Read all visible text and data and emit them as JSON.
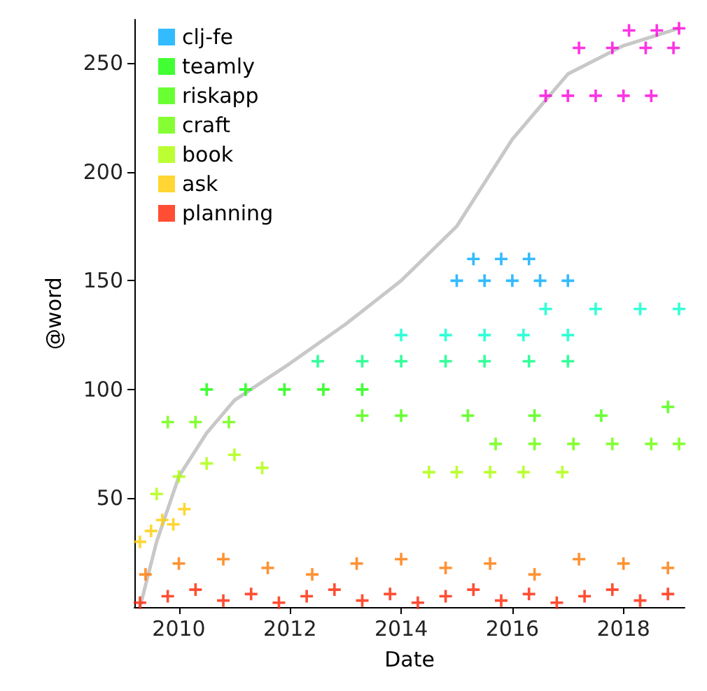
{
  "chart_data": {
    "type": "scatter",
    "xlabel": "Date",
    "ylabel": "@word",
    "marker": "cross",
    "grid": false,
    "legend": "top left",
    "xlim": [
      2009.2,
      2019.1
    ],
    "xticks": [
      2010,
      2012,
      2014,
      2016,
      2018
    ],
    "ylim": [
      0,
      270
    ],
    "yticks": [
      50,
      100,
      150,
      200,
      250
    ],
    "series": [
      {
        "color": "#ff00dd",
        "x": [
          2016.6,
          2017.0,
          2017.5,
          2018.0,
          2018.5,
          2017.2,
          2017.8,
          2018.4,
          2018.9,
          2018.1,
          2018.6,
          2019.0
        ],
        "values": [
          235,
          235,
          235,
          235,
          235,
          257,
          257,
          257,
          257,
          265,
          265,
          266
        ]
      },
      {
        "name": "clj-fe",
        "color": "#00aaff",
        "x": [
          2015.0,
          2015.5,
          2016.0,
          2016.5,
          2017.0,
          2015.3,
          2015.8,
          2016.3
        ],
        "values": [
          150,
          150,
          150,
          150,
          150,
          160,
          160,
          160
        ]
      },
      {
        "color": "#00ffcc",
        "x": [
          2014.0,
          2014.8,
          2015.5,
          2016.2,
          2017.0,
          2016.6,
          2017.5,
          2018.3,
          2019.0
        ],
        "values": [
          125,
          125,
          125,
          125,
          125,
          137,
          137,
          137,
          137
        ]
      },
      {
        "color": "#00ff80",
        "x": [
          2012.5,
          2013.3,
          2014.0,
          2014.8,
          2015.5,
          2016.3,
          2017.0
        ],
        "values": [
          113,
          113,
          113,
          113,
          113,
          113,
          113
        ]
      },
      {
        "name": "teamly",
        "color": "#11ff00",
        "x": [
          2010.5,
          2011.2,
          2011.9,
          2012.6,
          2013.3
        ],
        "values": [
          100,
          100,
          100,
          100,
          100
        ]
      },
      {
        "name": "riskapp",
        "color": "#44ff00",
        "x": [
          2013.3,
          2014.0,
          2015.2,
          2016.4,
          2017.6,
          2018.8
        ],
        "values": [
          88,
          88,
          88,
          88,
          88,
          92
        ]
      },
      {
        "name": "craft",
        "color": "#66ff00",
        "x": [
          2009.8,
          2010.3,
          2010.9,
          2015.7,
          2016.4,
          2017.1,
          2017.8,
          2018.5,
          2019.0
        ],
        "values": [
          85,
          85,
          85,
          75,
          75,
          75,
          75,
          75,
          75
        ]
      },
      {
        "name": "book",
        "color": "#aaff00",
        "x": [
          2009.6,
          2010.0,
          2010.5,
          2011.0,
          2011.5,
          2014.5,
          2015.0,
          2015.6,
          2016.2,
          2016.9
        ],
        "values": [
          52,
          60,
          66,
          70,
          64,
          62,
          62,
          62,
          62,
          62
        ]
      },
      {
        "name": "ask",
        "color": "#ffcc00",
        "x": [
          2009.3,
          2009.5,
          2009.7,
          2009.9,
          2010.1
        ],
        "values": [
          30,
          35,
          40,
          38,
          45
        ]
      },
      {
        "color": "#ff7700",
        "x": [
          2009.4,
          2010.0,
          2010.8,
          2011.6,
          2012.4,
          2013.2,
          2014.0,
          2014.8,
          2015.6,
          2016.4,
          2017.2,
          2018.0,
          2018.8
        ],
        "values": [
          15,
          20,
          22,
          18,
          15,
          20,
          22,
          18,
          20,
          15,
          22,
          20,
          18
        ]
      },
      {
        "name": "planning",
        "color": "#ff2200",
        "x": [
          2009.3,
          2009.8,
          2010.3,
          2010.8,
          2011.3,
          2011.8,
          2012.3,
          2012.8,
          2013.3,
          2013.8,
          2014.3,
          2014.8,
          2015.3,
          2015.8,
          2016.3,
          2016.8,
          2017.3,
          2017.8,
          2018.3,
          2018.8
        ],
        "values": [
          2,
          5,
          8,
          3,
          6,
          2,
          5,
          8,
          3,
          6,
          2,
          5,
          8,
          3,
          6,
          2,
          5,
          8,
          3,
          6
        ]
      },
      {
        "type": "line",
        "marker": "none",
        "color": "#c8c8c8",
        "x": [
          2009.3,
          2009.6,
          2010.0,
          2010.5,
          2011.0,
          2012.0,
          2013.0,
          2014.0,
          2015.0,
          2016.0,
          2017.0,
          2018.0,
          2019.0
        ],
        "values": [
          0,
          30,
          60,
          80,
          95,
          112,
          130,
          150,
          175,
          215,
          245,
          258,
          266
        ]
      }
    ]
  }
}
